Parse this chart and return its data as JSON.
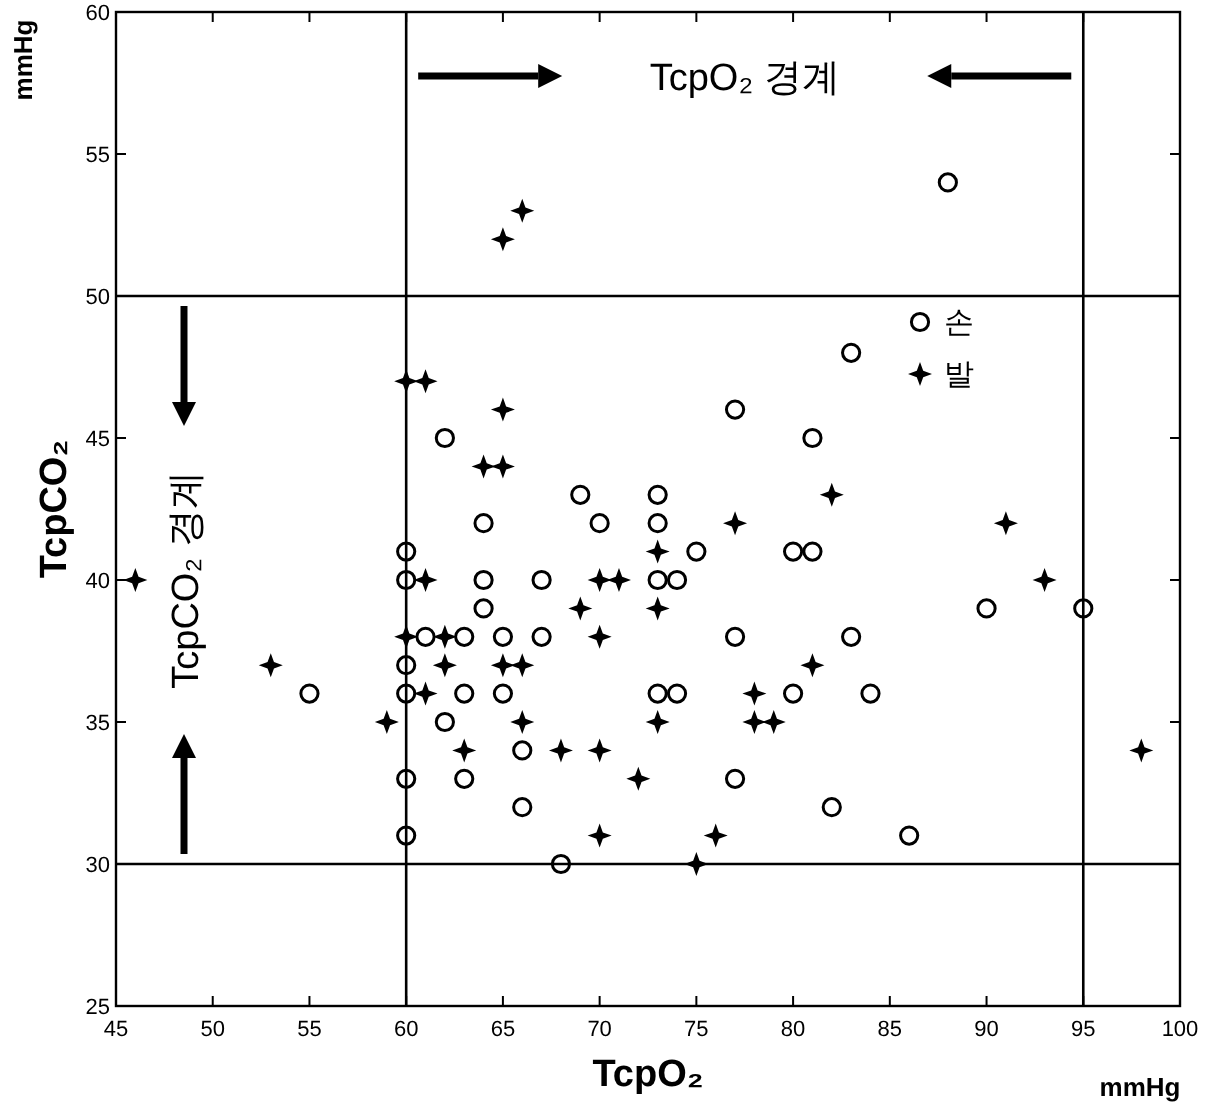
{
  "chart_data": {
    "type": "scatter",
    "xlabel": "TcpO₂",
    "ylabel": "TcpCO₂",
    "xlim": [
      45,
      100
    ],
    "ylim": [
      25,
      60
    ],
    "xticks": [
      45,
      50,
      55,
      60,
      65,
      70,
      75,
      80,
      85,
      90,
      95,
      100
    ],
    "yticks": [
      25,
      30,
      35,
      40,
      45,
      50,
      55,
      60
    ],
    "grid": false,
    "legend": "top right",
    "series": [
      {
        "name": "손",
        "color": "#000000",
        "marker": "circle",
        "x": [
          55,
          60,
          60,
          60,
          60,
          60,
          60,
          61,
          62,
          63,
          62,
          63,
          63,
          64,
          64,
          64,
          65,
          65,
          66,
          66,
          67,
          67,
          68,
          69,
          70,
          83,
          77,
          81,
          73,
          73,
          75,
          80,
          81,
          73,
          74,
          90,
          95,
          77,
          83,
          73,
          74,
          80,
          84,
          77,
          82,
          86,
          88
        ],
        "values": [
          36,
          41,
          40,
          37,
          36,
          33,
          31,
          38,
          45,
          38,
          35,
          36,
          33,
          42,
          40,
          39,
          38,
          36,
          34,
          32,
          40,
          38,
          30,
          43,
          42,
          48,
          46,
          45,
          43,
          42,
          41,
          41,
          41,
          40,
          40,
          39,
          39,
          38,
          38,
          36,
          36,
          36,
          36,
          33,
          32,
          31,
          54
        ]
      },
      {
        "name": "발",
        "color": "#000000",
        "marker": "star",
        "x": [
          46,
          53,
          59,
          60,
          60,
          61,
          61,
          62,
          62,
          61,
          63,
          65,
          64,
          65,
          65,
          66,
          66,
          68,
          69,
          70,
          71,
          70,
          70,
          70,
          72,
          77,
          82,
          91,
          73,
          93,
          73,
          81,
          78,
          73,
          78,
          79,
          98,
          76,
          75,
          65,
          66
        ],
        "values": [
          40,
          37,
          35,
          47,
          38,
          47,
          40,
          38,
          37,
          36,
          34,
          46,
          44,
          44,
          37,
          37,
          35,
          34,
          39,
          40,
          40,
          38,
          34,
          31,
          33,
          42,
          43,
          42,
          41,
          40,
          39,
          37,
          36,
          35,
          35,
          35,
          34,
          31,
          30,
          52,
          53
        ]
      }
    ],
    "ref_lines": [
      {
        "axis": "x",
        "value": 60,
        "color": "#000000"
      },
      {
        "axis": "x",
        "value": 95,
        "color": "#000000"
      },
      {
        "axis": "y",
        "value": 30,
        "color": "#000000"
      },
      {
        "axis": "y",
        "value": 50,
        "color": "#000000"
      }
    ],
    "annotations": [
      "mmHg",
      "mmHg",
      "TcpO₂ 경계",
      "TcpCO₂ 경계"
    ]
  }
}
